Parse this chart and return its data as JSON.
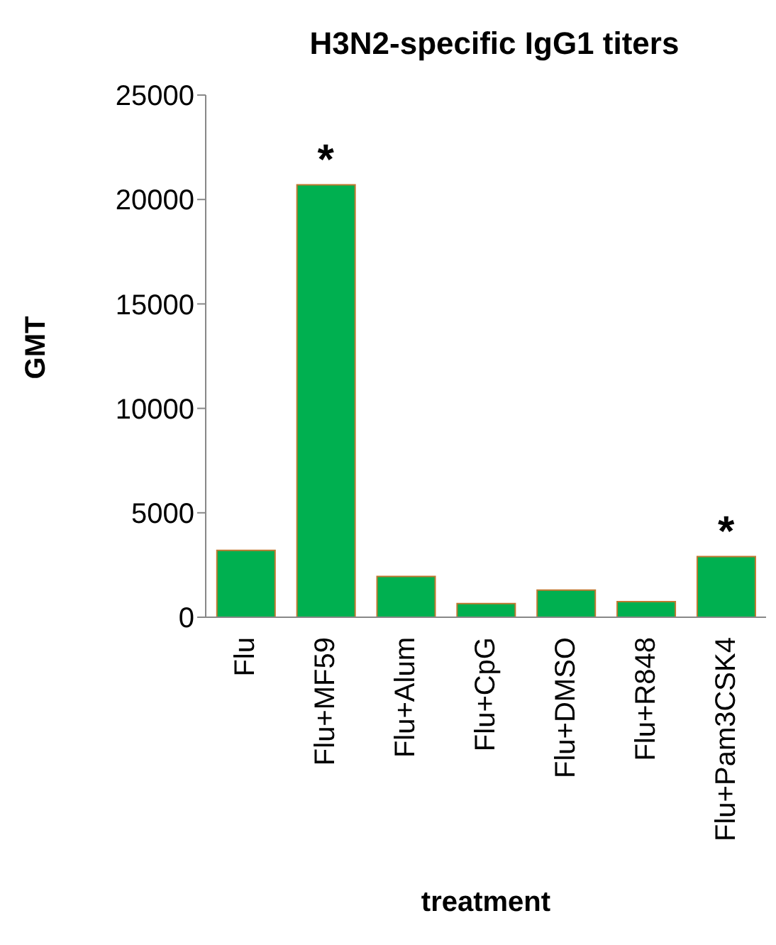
{
  "chart_data": {
    "type": "bar",
    "title": "H3N2-specific IgG1 titers",
    "xlabel": "treatment",
    "ylabel": "GMT",
    "categories": [
      "Flu",
      "Flu+MF59",
      "Flu+Alum",
      "Flu+CpG",
      "Flu+DMSO",
      "Flu+R848",
      "Flu+Pam3CSK4"
    ],
    "values": [
      3200,
      20700,
      1950,
      650,
      1300,
      750,
      2900
    ],
    "color": "#00b050",
    "ylim": [
      0,
      25000
    ],
    "yticks": [
      0,
      5000,
      10000,
      15000,
      20000,
      25000
    ],
    "grid": false,
    "annotations": [
      {
        "text": "*",
        "x": "Flu+MF59",
        "y": 20700
      },
      {
        "text": "*",
        "x": "Flu+Pam3CSK4",
        "y": 2900
      }
    ]
  }
}
